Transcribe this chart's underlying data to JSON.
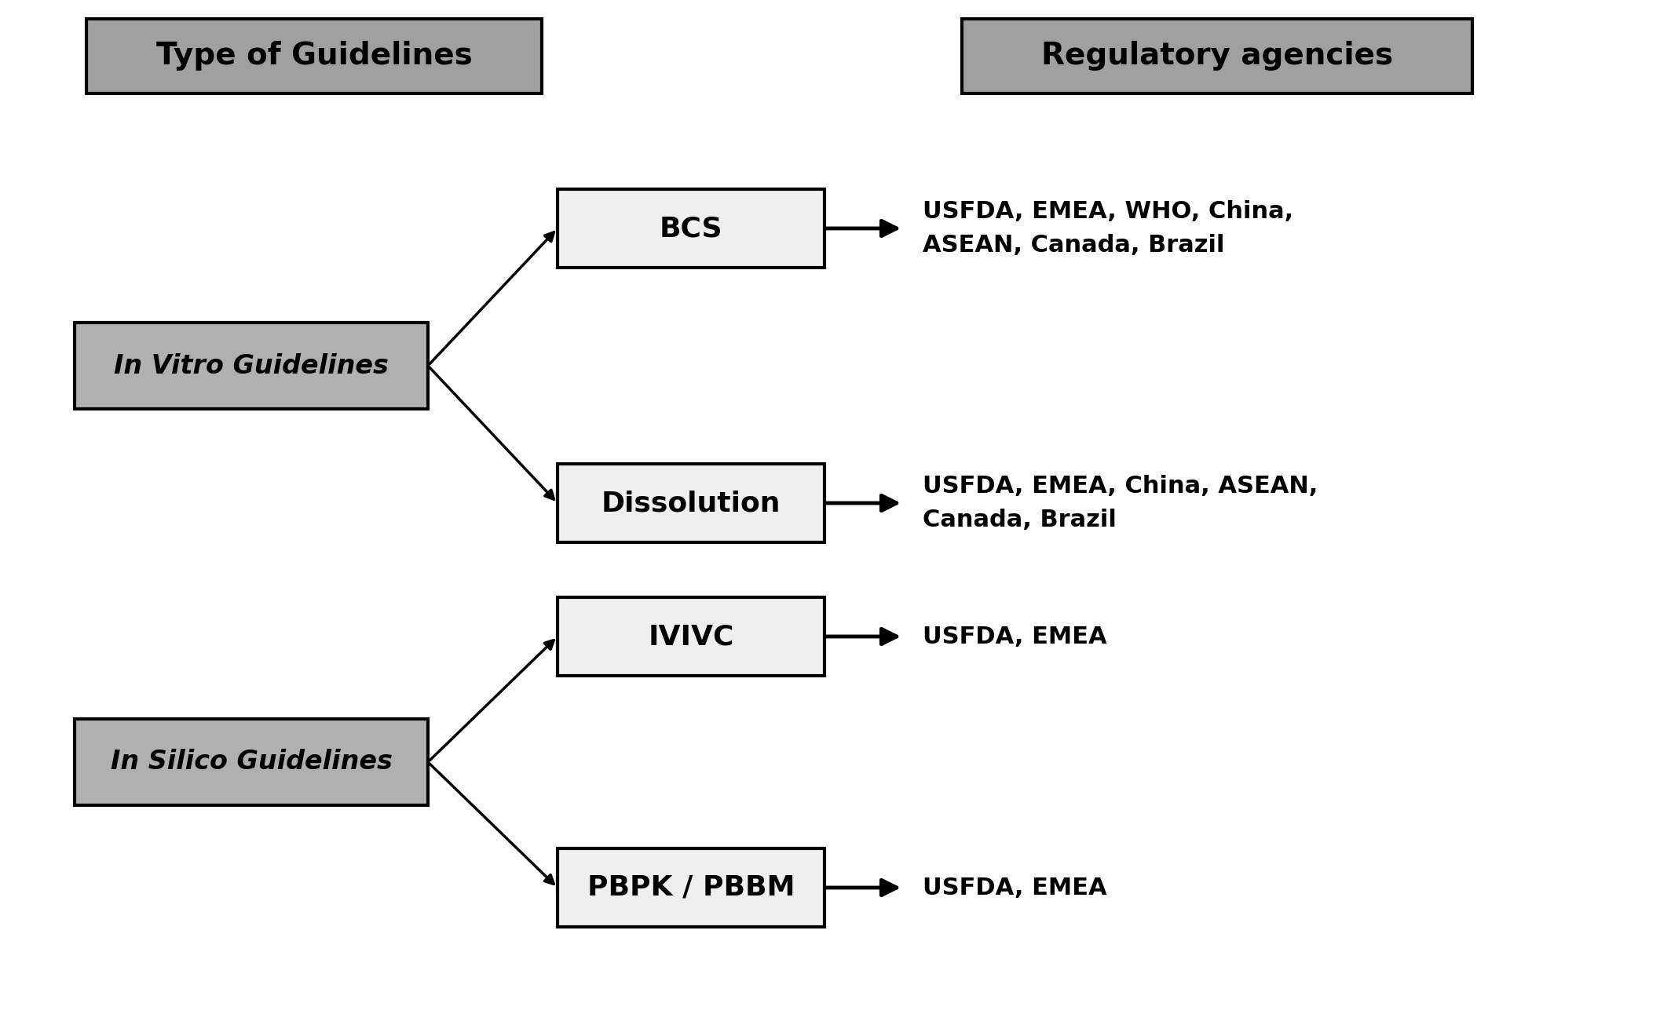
{
  "background_color": "#ffffff",
  "header_left": "Type of Guidelines",
  "header_right": "Regulatory agencies",
  "header_box_facecolor": "#a0a0a0",
  "header_box_edgecolor": "#000000",
  "header_text_color": "#000000",
  "left_box_facecolor": "#b0b0b0",
  "left_box_edgecolor": "#000000",
  "left_box_text_color": "#000000",
  "middle_box_facecolor": "#efefef",
  "middle_box_edgecolor": "#000000",
  "middle_box_text_color": "#000000",
  "groups": [
    {
      "left_label": "In Vitro Guidelines",
      "children": [
        {
          "label": "BCS",
          "agencies": "USFDA, EMEA, WHO, China,\nASEAN, Canada, Brazil"
        },
        {
          "label": "Dissolution",
          "agencies": "USFDA, EMEA, China, ASEAN,\nCanada, Brazil"
        }
      ]
    },
    {
      "left_label": "In Silico Guidelines",
      "children": [
        {
          "label": "IVIVC",
          "agencies": "USFDA, EMEA"
        },
        {
          "label": "PBPK / PBBM",
          "agencies": "USFDA, EMEA"
        }
      ]
    }
  ]
}
